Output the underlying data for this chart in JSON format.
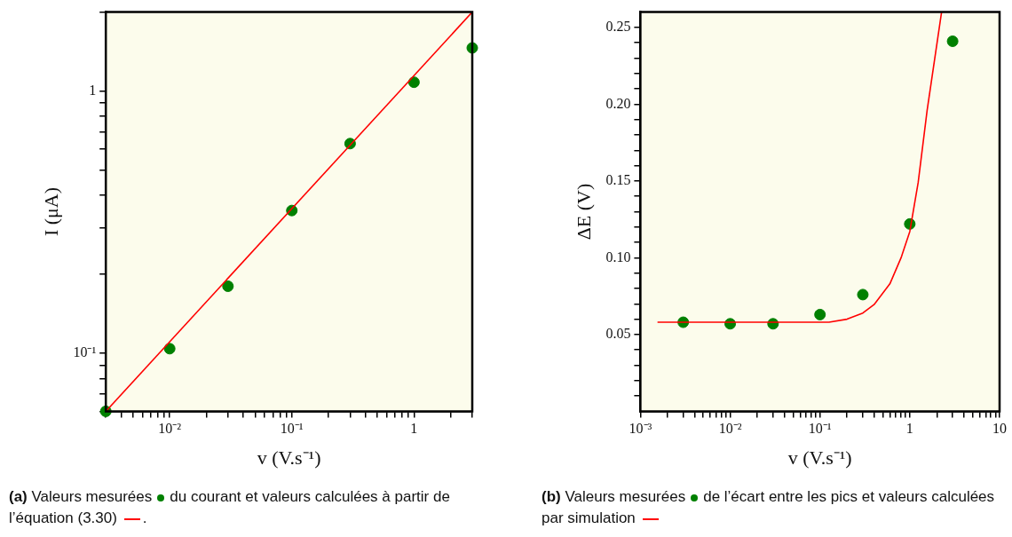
{
  "chart_data": [
    {
      "type": "scatter",
      "xlabel": "v (V.s⁻¹)",
      "ylabel": "I (μA)",
      "log": "xy",
      "grid": false,
      "legend": false,
      "xlim": [
        0.003,
        3
      ],
      "ylim": [
        0.06,
        2
      ],
      "xticks": [
        {
          "value": 0.003,
          "label": null
        },
        {
          "value": 0.004,
          "label": null
        },
        {
          "value": 0.005,
          "label": null
        },
        {
          "value": 0.006,
          "label": null
        },
        {
          "value": 0.007,
          "label": null
        },
        {
          "value": 0.008,
          "label": null
        },
        {
          "value": 0.009,
          "label": null
        },
        {
          "value": 0.01,
          "label": "10⁻²"
        },
        {
          "value": 0.02,
          "label": null
        },
        {
          "value": 0.03,
          "label": null
        },
        {
          "value": 0.04,
          "label": null
        },
        {
          "value": 0.05,
          "label": null
        },
        {
          "value": 0.06,
          "label": null
        },
        {
          "value": 0.07,
          "label": null
        },
        {
          "value": 0.08,
          "label": null
        },
        {
          "value": 0.09,
          "label": null
        },
        {
          "value": 0.1,
          "label": "10⁻¹"
        },
        {
          "value": 0.2,
          "label": null
        },
        {
          "value": 0.3,
          "label": null
        },
        {
          "value": 0.4,
          "label": null
        },
        {
          "value": 0.5,
          "label": null
        },
        {
          "value": 0.6,
          "label": null
        },
        {
          "value": 0.7,
          "label": null
        },
        {
          "value": 0.8,
          "label": null
        },
        {
          "value": 0.9,
          "label": null
        },
        {
          "value": 1,
          "label": "1"
        },
        {
          "value": 2,
          "label": null
        },
        {
          "value": 3,
          "label": null
        }
      ],
      "yticks": [
        {
          "value": 0.06,
          "label": null
        },
        {
          "value": 0.07,
          "label": null
        },
        {
          "value": 0.08,
          "label": null
        },
        {
          "value": 0.09,
          "label": null
        },
        {
          "value": 0.1,
          "label": "10⁻¹"
        },
        {
          "value": 0.2,
          "label": null
        },
        {
          "value": 0.3,
          "label": null
        },
        {
          "value": 0.4,
          "label": null
        },
        {
          "value": 0.5,
          "label": null
        },
        {
          "value": 0.6,
          "label": null
        },
        {
          "value": 0.7,
          "label": null
        },
        {
          "value": 0.8,
          "label": null
        },
        {
          "value": 0.9,
          "label": null
        },
        {
          "value": 1,
          "label": "1"
        },
        {
          "value": 2,
          "label": null
        }
      ],
      "series": [
        {
          "type": "line",
          "color": "#ff0000",
          "marker": "none",
          "x": [
            0.003,
            3
          ],
          "values": [
            0.06,
            2
          ]
        },
        {
          "type": "scatter",
          "color": "#008000",
          "marker": "circle",
          "x": [
            0.003,
            0.01,
            0.03,
            0.1,
            0.3,
            1,
            3
          ],
          "values": [
            0.06,
            0.104,
            0.18,
            0.35,
            0.63,
            1.08,
            1.46
          ]
        }
      ],
      "annotations": [
        "(a) Valeurs mesurées",
        "du courant et valeurs calculées à partir de l’équation (3.30)",
        "."
      ]
    },
    {
      "type": "scatter",
      "xlabel": "v (V.s⁻¹)",
      "ylabel": "ΔE (V)",
      "log": "x",
      "grid": false,
      "legend": false,
      "xlim": [
        0.001,
        10
      ],
      "ylim": [
        0,
        0.26
      ],
      "xticks": [
        {
          "value": 0.001,
          "label": "10⁻³"
        },
        {
          "value": 0.002,
          "label": null
        },
        {
          "value": 0.003,
          "label": null
        },
        {
          "value": 0.004,
          "label": null
        },
        {
          "value": 0.005,
          "label": null
        },
        {
          "value": 0.006,
          "label": null
        },
        {
          "value": 0.007,
          "label": null
        },
        {
          "value": 0.008,
          "label": null
        },
        {
          "value": 0.009,
          "label": null
        },
        {
          "value": 0.01,
          "label": "10⁻²"
        },
        {
          "value": 0.02,
          "label": null
        },
        {
          "value": 0.03,
          "label": null
        },
        {
          "value": 0.04,
          "label": null
        },
        {
          "value": 0.05,
          "label": null
        },
        {
          "value": 0.06,
          "label": null
        },
        {
          "value": 0.07,
          "label": null
        },
        {
          "value": 0.08,
          "label": null
        },
        {
          "value": 0.09,
          "label": null
        },
        {
          "value": 0.1,
          "label": "10⁻¹"
        },
        {
          "value": 0.2,
          "label": null
        },
        {
          "value": 0.3,
          "label": null
        },
        {
          "value": 0.4,
          "label": null
        },
        {
          "value": 0.5,
          "label": null
        },
        {
          "value": 0.6,
          "label": null
        },
        {
          "value": 0.7,
          "label": null
        },
        {
          "value": 0.8,
          "label": null
        },
        {
          "value": 0.9,
          "label": null
        },
        {
          "value": 1,
          "label": "1"
        },
        {
          "value": 2,
          "label": null
        },
        {
          "value": 3,
          "label": null
        },
        {
          "value": 4,
          "label": null
        },
        {
          "value": 5,
          "label": null
        },
        {
          "value": 6,
          "label": null
        },
        {
          "value": 7,
          "label": null
        },
        {
          "value": 8,
          "label": null
        },
        {
          "value": 9,
          "label": null
        },
        {
          "value": 10,
          "label": "10"
        }
      ],
      "yticks": [
        {
          "value": 0.01,
          "label": null
        },
        {
          "value": 0.02,
          "label": null
        },
        {
          "value": 0.03,
          "label": null
        },
        {
          "value": 0.04,
          "label": null
        },
        {
          "value": 0.05,
          "label": "0.05"
        },
        {
          "value": 0.06,
          "label": null
        },
        {
          "value": 0.07,
          "label": null
        },
        {
          "value": 0.08,
          "label": null
        },
        {
          "value": 0.09,
          "label": null
        },
        {
          "value": 0.1,
          "label": "0.10"
        },
        {
          "value": 0.11,
          "label": null
        },
        {
          "value": 0.12,
          "label": null
        },
        {
          "value": 0.13,
          "label": null
        },
        {
          "value": 0.14,
          "label": null
        },
        {
          "value": 0.15,
          "label": "0.15"
        },
        {
          "value": 0.16,
          "label": null
        },
        {
          "value": 0.17,
          "label": null
        },
        {
          "value": 0.18,
          "label": null
        },
        {
          "value": 0.19,
          "label": null
        },
        {
          "value": 0.2,
          "label": "0.20"
        },
        {
          "value": 0.21,
          "label": null
        },
        {
          "value": 0.22,
          "label": null
        },
        {
          "value": 0.23,
          "label": null
        },
        {
          "value": 0.24,
          "label": null
        },
        {
          "value": 0.25,
          "label": "0.25"
        }
      ],
      "series": [
        {
          "type": "line",
          "color": "#ff0000",
          "marker": "none",
          "x": [
            0.00155,
            0.126,
            0.2,
            0.3,
            0.4,
            0.6,
            0.8,
            1,
            1.24,
            1.56,
            2.26
          ],
          "values": [
            0.058,
            0.058,
            0.06,
            0.064,
            0.0695,
            0.083,
            0.1,
            0.117,
            0.149,
            0.196,
            0.26
          ]
        },
        {
          "type": "scatter",
          "color": "#008000",
          "marker": "circle",
          "x": [
            0.003,
            0.01,
            0.03,
            0.1,
            0.3,
            1,
            3
          ],
          "values": [
            0.058,
            0.057,
            0.057,
            0.063,
            0.076,
            0.122,
            0.241
          ]
        }
      ],
      "annotations": [
        "(b) Valeurs mesurées",
        "de l’écart entre les pics et valeurs calculées par simulation"
      ]
    }
  ]
}
